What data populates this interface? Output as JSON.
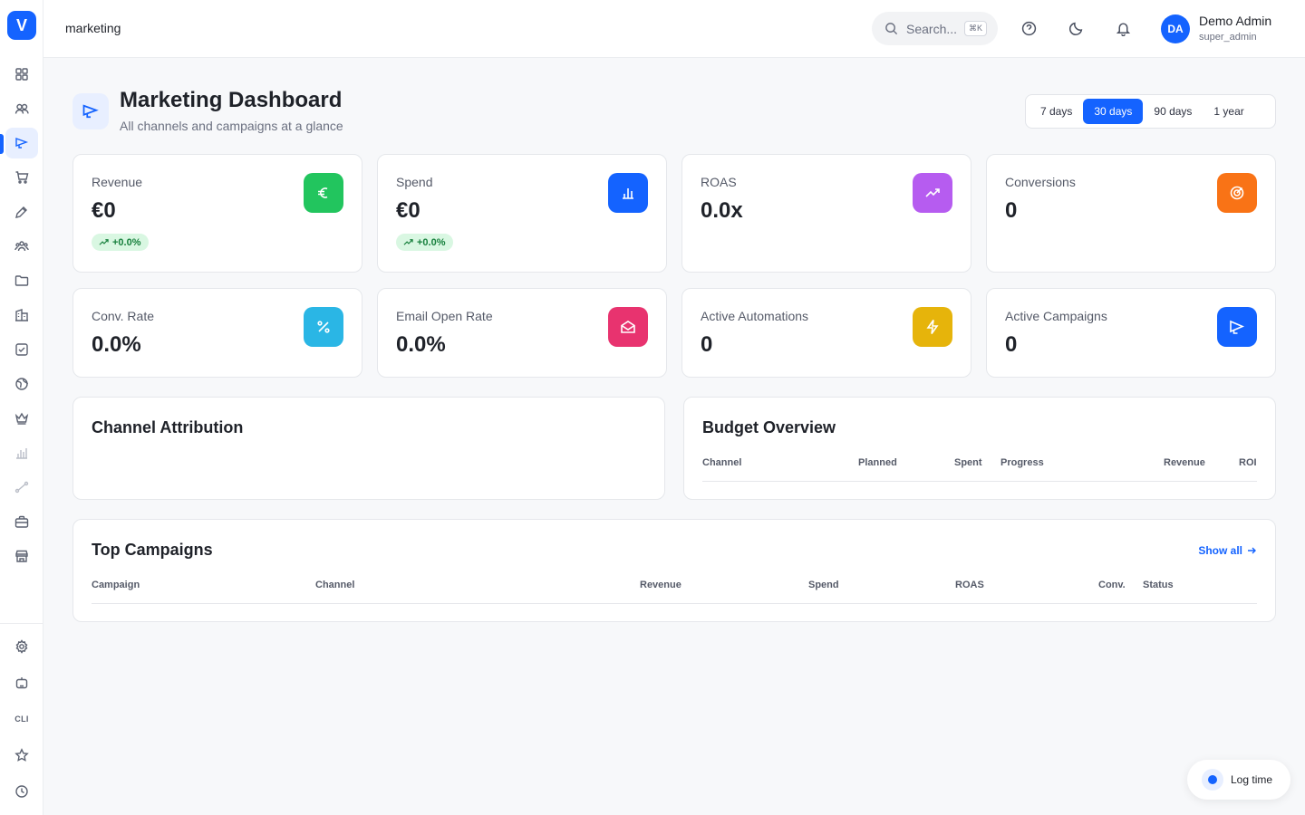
{
  "app": {
    "logo_letter": "V"
  },
  "topbar": {
    "breadcrumb": "marketing",
    "search_placeholder": "Search...",
    "search_shortcut": "⌘K",
    "user": {
      "initials": "DA",
      "name": "Demo Admin",
      "role": "super_admin"
    }
  },
  "header": {
    "title": "Marketing Dashboard",
    "subtitle": "All channels and campaigns at a glance",
    "ranges": [
      "7 days",
      "30 days",
      "90 days",
      "1 year"
    ],
    "active_range": "30 days"
  },
  "stats": [
    {
      "label": "Revenue",
      "value": "€0",
      "trend": "+0.0%",
      "icon": "euro-icon",
      "color": "#22c55e"
    },
    {
      "label": "Spend",
      "value": "€0",
      "trend": "+0.0%",
      "icon": "bar-chart-icon",
      "color": "#1463ff"
    },
    {
      "label": "ROAS",
      "value": "0.0x",
      "icon": "trending-up-icon",
      "color": "#b65cf0"
    },
    {
      "label": "Conversions",
      "value": "0",
      "icon": "target-icon",
      "color": "#f97316"
    },
    {
      "label": "Conv. Rate",
      "value": "0.0%",
      "icon": "percent-icon",
      "color": "#2ab6e5"
    },
    {
      "label": "Email Open Rate",
      "value": "0.0%",
      "icon": "mail-open-icon",
      "color": "#e8336f"
    },
    {
      "label": "Active Automations",
      "value": "0",
      "icon": "zap-icon",
      "color": "#e6b40b"
    },
    {
      "label": "Active Campaigns",
      "value": "0",
      "icon": "megaphone-icon",
      "color": "#1463ff"
    }
  ],
  "channel_attribution": {
    "title": "Channel Attribution"
  },
  "budget_overview": {
    "title": "Budget Overview",
    "columns": [
      "Channel",
      "Planned",
      "Spent",
      "Progress",
      "Revenue",
      "ROI"
    ]
  },
  "top_campaigns": {
    "title": "Top Campaigns",
    "show_all": "Show all",
    "columns": [
      "Campaign",
      "Channel",
      "Revenue",
      "Spend",
      "ROAS",
      "Conv.",
      "Status"
    ]
  },
  "log_time": {
    "label": "Log time"
  },
  "sidebar": {
    "items": [
      {
        "icon": "grid-icon"
      },
      {
        "icon": "users-icon"
      },
      {
        "icon": "megaphone-icon",
        "active": true
      },
      {
        "icon": "cart-icon"
      },
      {
        "icon": "pen-icon"
      },
      {
        "icon": "team-icon"
      },
      {
        "icon": "folder-icon"
      },
      {
        "icon": "building-icon"
      },
      {
        "icon": "checkbox-icon"
      },
      {
        "icon": "globe-icon"
      },
      {
        "icon": "crown-icon"
      },
      {
        "icon": "chart-icon"
      },
      {
        "icon": "route-icon"
      },
      {
        "icon": "briefcase-icon"
      },
      {
        "icon": "store-icon"
      }
    ],
    "bottom": [
      "gear-icon",
      "bot-icon",
      "cli",
      "star-icon",
      "clock-icon"
    ],
    "cli_label": "CLI"
  }
}
